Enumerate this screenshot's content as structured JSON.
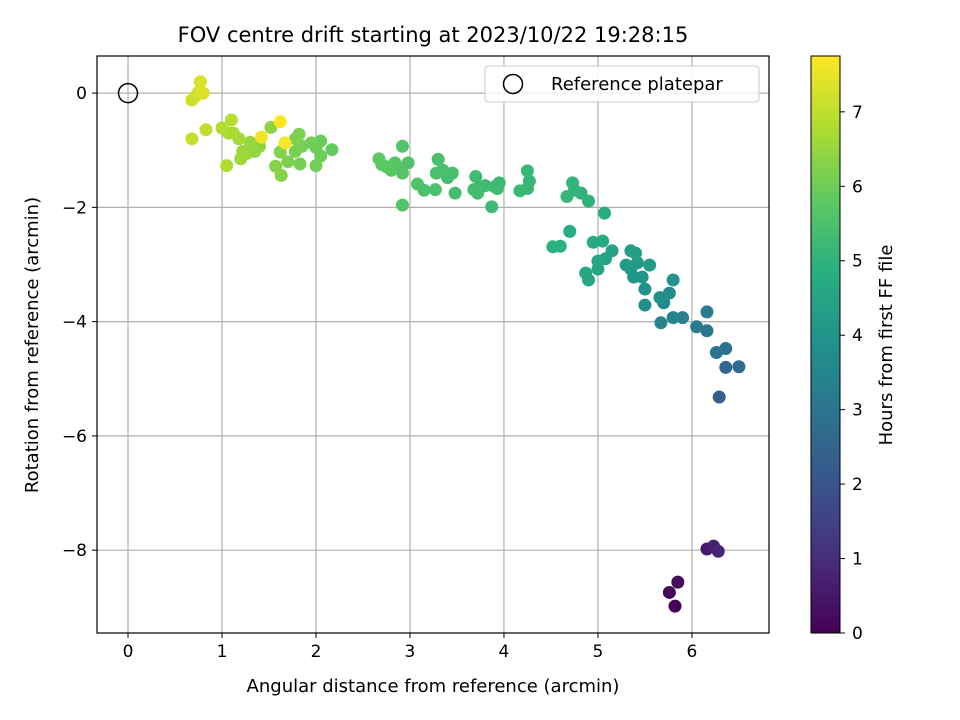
{
  "chart_data": {
    "type": "scatter",
    "title": "FOV centre drift starting at 2023/10/22 19:28:15",
    "xlabel": "Angular distance from reference (arcmin)",
    "ylabel": "Rotation from reference (arcmin)",
    "xlim": [
      -0.33,
      6.82
    ],
    "ylim": [
      -9.45,
      0.65
    ],
    "xticks": [
      0,
      1,
      2,
      3,
      4,
      5,
      6
    ],
    "yticks": [
      0,
      -2,
      -4,
      -6,
      -8
    ],
    "xtick_labels": [
      "0",
      "1",
      "2",
      "3",
      "4",
      "5",
      "6"
    ],
    "ytick_labels": [
      "0",
      "−2",
      "−4",
      "−6",
      "−8"
    ],
    "grid": true,
    "legend": {
      "location": "top-right",
      "entries": [
        "Reference platepar"
      ]
    },
    "reference_point": {
      "x": 0,
      "y": 0
    },
    "colorbar": {
      "label": "Hours from first FF file",
      "colormap": "viridis",
      "range": [
        0,
        7.75
      ],
      "ticks": [
        0,
        1,
        2,
        3,
        4,
        5,
        6,
        7
      ],
      "tick_labels": [
        "0",
        "1",
        "2",
        "3",
        "4",
        "5",
        "6",
        "7"
      ]
    },
    "points": [
      {
        "x": 5.82,
        "y": -8.98,
        "h": 0.05
      },
      {
        "x": 5.76,
        "y": -8.74,
        "h": 0.15
      },
      {
        "x": 5.85,
        "y": -8.56,
        "h": 0.25
      },
      {
        "x": 6.16,
        "y": -7.98,
        "h": 0.55
      },
      {
        "x": 6.23,
        "y": -7.93,
        "h": 0.7
      },
      {
        "x": 6.28,
        "y": -8.02,
        "h": 0.8
      },
      {
        "x": 6.29,
        "y": -5.32,
        "h": 2.4
      },
      {
        "x": 6.36,
        "y": -4.8,
        "h": 2.6
      },
      {
        "x": 6.5,
        "y": -4.79,
        "h": 2.7
      },
      {
        "x": 6.36,
        "y": -4.47,
        "h": 2.9
      },
      {
        "x": 6.26,
        "y": -4.54,
        "h": 3.0
      },
      {
        "x": 6.16,
        "y": -4.16,
        "h": 3.1
      },
      {
        "x": 6.05,
        "y": -4.09,
        "h": 3.2
      },
      {
        "x": 6.16,
        "y": -3.83,
        "h": 3.2
      },
      {
        "x": 5.9,
        "y": -3.93,
        "h": 3.3
      },
      {
        "x": 5.8,
        "y": -3.93,
        "h": 3.4
      },
      {
        "x": 5.67,
        "y": -4.02,
        "h": 3.5
      },
      {
        "x": 5.7,
        "y": -3.67,
        "h": 3.6
      },
      {
        "x": 5.76,
        "y": -3.5,
        "h": 3.7
      },
      {
        "x": 5.66,
        "y": -3.58,
        "h": 3.8
      },
      {
        "x": 5.5,
        "y": -3.71,
        "h": 3.8
      },
      {
        "x": 5.8,
        "y": -3.27,
        "h": 3.9
      },
      {
        "x": 5.5,
        "y": -3.43,
        "h": 3.9
      },
      {
        "x": 5.47,
        "y": -3.22,
        "h": 4.0
      },
      {
        "x": 5.38,
        "y": -3.22,
        "h": 4.0
      },
      {
        "x": 5.35,
        "y": -3.08,
        "h": 4.1
      },
      {
        "x": 5.42,
        "y": -2.97,
        "h": 4.1
      },
      {
        "x": 5.55,
        "y": -3.01,
        "h": 4.2
      },
      {
        "x": 5.3,
        "y": -3.01,
        "h": 4.2
      },
      {
        "x": 5.35,
        "y": -2.76,
        "h": 4.3
      },
      {
        "x": 5.4,
        "y": -2.8,
        "h": 4.3
      },
      {
        "x": 5.15,
        "y": -2.76,
        "h": 4.4
      },
      {
        "x": 5.08,
        "y": -2.9,
        "h": 4.4
      },
      {
        "x": 5.0,
        "y": -2.94,
        "h": 4.5
      },
      {
        "x": 5.0,
        "y": -3.08,
        "h": 4.5
      },
      {
        "x": 4.9,
        "y": -3.27,
        "h": 4.6
      },
      {
        "x": 4.87,
        "y": -3.15,
        "h": 4.6
      },
      {
        "x": 4.95,
        "y": -2.61,
        "h": 4.7
      },
      {
        "x": 5.05,
        "y": -2.59,
        "h": 4.7
      },
      {
        "x": 5.07,
        "y": -2.1,
        "h": 4.8
      },
      {
        "x": 4.7,
        "y": -2.42,
        "h": 4.8
      },
      {
        "x": 4.6,
        "y": -2.68,
        "h": 4.9
      },
      {
        "x": 4.52,
        "y": -2.69,
        "h": 4.9
      },
      {
        "x": 4.9,
        "y": -1.89,
        "h": 5.0
      },
      {
        "x": 4.82,
        "y": -1.75,
        "h": 5.0
      },
      {
        "x": 4.75,
        "y": -1.7,
        "h": 5.05
      },
      {
        "x": 4.73,
        "y": -1.57,
        "h": 5.05
      },
      {
        "x": 4.67,
        "y": -1.81,
        "h": 5.1
      },
      {
        "x": 4.27,
        "y": -1.54,
        "h": 5.1
      },
      {
        "x": 4.25,
        "y": -1.36,
        "h": 5.15
      },
      {
        "x": 4.25,
        "y": -1.67,
        "h": 5.15
      },
      {
        "x": 4.17,
        "y": -1.71,
        "h": 5.2
      },
      {
        "x": 3.95,
        "y": -1.57,
        "h": 5.2
      },
      {
        "x": 3.9,
        "y": -1.64,
        "h": 5.2
      },
      {
        "x": 3.93,
        "y": -1.67,
        "h": 5.25
      },
      {
        "x": 3.87,
        "y": -1.99,
        "h": 5.25
      },
      {
        "x": 3.8,
        "y": -1.62,
        "h": 5.3
      },
      {
        "x": 3.75,
        "y": -1.64,
        "h": 5.3
      },
      {
        "x": 3.7,
        "y": -1.46,
        "h": 5.3
      },
      {
        "x": 3.68,
        "y": -1.69,
        "h": 5.35
      },
      {
        "x": 3.72,
        "y": -1.75,
        "h": 5.35
      },
      {
        "x": 3.48,
        "y": -1.75,
        "h": 5.4
      },
      {
        "x": 3.45,
        "y": -1.4,
        "h": 5.4
      },
      {
        "x": 3.4,
        "y": -1.48,
        "h": 5.4
      },
      {
        "x": 3.35,
        "y": -1.35,
        "h": 5.45
      },
      {
        "x": 3.3,
        "y": -1.16,
        "h": 5.45
      },
      {
        "x": 3.28,
        "y": -1.4,
        "h": 5.5
      },
      {
        "x": 3.27,
        "y": -1.69,
        "h": 5.5
      },
      {
        "x": 3.15,
        "y": -1.7,
        "h": 5.5
      },
      {
        "x": 3.08,
        "y": -1.59,
        "h": 5.55
      },
      {
        "x": 2.98,
        "y": -1.22,
        "h": 5.55
      },
      {
        "x": 2.92,
        "y": -0.93,
        "h": 5.6
      },
      {
        "x": 2.92,
        "y": -1.96,
        "h": 5.6
      },
      {
        "x": 2.92,
        "y": -1.4,
        "h": 5.65
      },
      {
        "x": 2.87,
        "y": -1.3,
        "h": 5.65
      },
      {
        "x": 2.84,
        "y": -1.22,
        "h": 5.7
      },
      {
        "x": 2.8,
        "y": -1.35,
        "h": 5.7
      },
      {
        "x": 2.75,
        "y": -1.29,
        "h": 5.75
      },
      {
        "x": 2.7,
        "y": -1.25,
        "h": 5.75
      },
      {
        "x": 2.67,
        "y": -1.15,
        "h": 5.8
      },
      {
        "x": 2.17,
        "y": -0.99,
        "h": 5.9
      },
      {
        "x": 2.05,
        "y": -0.84,
        "h": 5.95
      },
      {
        "x": 2.05,
        "y": -1.1,
        "h": 6.0
      },
      {
        "x": 2.0,
        "y": -0.95,
        "h": 6.0
      },
      {
        "x": 2.0,
        "y": -1.27,
        "h": 6.05
      },
      {
        "x": 1.95,
        "y": -0.87,
        "h": 6.05
      },
      {
        "x": 1.85,
        "y": -0.93,
        "h": 6.1
      },
      {
        "x": 1.83,
        "y": -1.24,
        "h": 6.1
      },
      {
        "x": 1.78,
        "y": -1.02,
        "h": 6.15
      },
      {
        "x": 1.82,
        "y": -0.72,
        "h": 6.15
      },
      {
        "x": 1.78,
        "y": -0.8,
        "h": 6.2
      },
      {
        "x": 1.7,
        "y": -1.2,
        "h": 6.2
      },
      {
        "x": 1.62,
        "y": -1.03,
        "h": 6.25
      },
      {
        "x": 1.63,
        "y": -1.44,
        "h": 6.3
      },
      {
        "x": 1.57,
        "y": -1.28,
        "h": 6.3
      },
      {
        "x": 1.52,
        "y": -0.6,
        "h": 6.35
      },
      {
        "x": 1.4,
        "y": -0.93,
        "h": 6.4
      },
      {
        "x": 1.35,
        "y": -1.02,
        "h": 6.45
      },
      {
        "x": 1.3,
        "y": -0.86,
        "h": 6.5
      },
      {
        "x": 1.27,
        "y": -1.05,
        "h": 6.5
      },
      {
        "x": 1.22,
        "y": -1.02,
        "h": 6.55
      },
      {
        "x": 1.2,
        "y": -1.15,
        "h": 6.6
      },
      {
        "x": 1.18,
        "y": -0.8,
        "h": 6.65
      },
      {
        "x": 1.12,
        "y": -0.7,
        "h": 6.7
      },
      {
        "x": 1.07,
        "y": -0.7,
        "h": 6.75
      },
      {
        "x": 1.05,
        "y": -1.27,
        "h": 6.8
      },
      {
        "x": 1.0,
        "y": -0.61,
        "h": 6.85
      },
      {
        "x": 1.1,
        "y": -0.47,
        "h": 6.9
      },
      {
        "x": 0.83,
        "y": -0.64,
        "h": 7.0
      },
      {
        "x": 0.68,
        "y": -0.8,
        "h": 7.05
      },
      {
        "x": 0.68,
        "y": -0.12,
        "h": 7.15
      },
      {
        "x": 0.72,
        "y": -0.05,
        "h": 7.2
      },
      {
        "x": 0.75,
        "y": 0.02,
        "h": 7.25
      },
      {
        "x": 0.77,
        "y": 0.2,
        "h": 7.3
      },
      {
        "x": 0.8,
        "y": 0.0,
        "h": 7.35
      },
      {
        "x": 1.42,
        "y": -0.77,
        "h": 7.6
      },
      {
        "x": 1.67,
        "y": -0.87,
        "h": 7.65
      },
      {
        "x": 1.62,
        "y": -0.5,
        "h": 7.75
      }
    ]
  }
}
